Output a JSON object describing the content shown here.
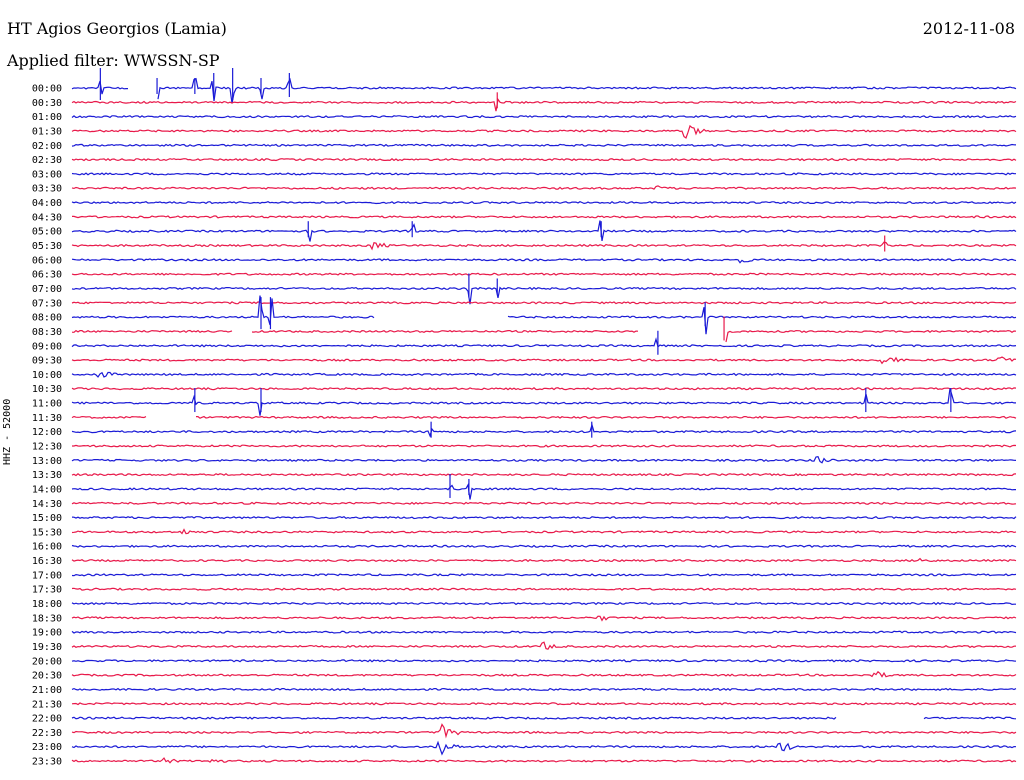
{
  "header": {
    "station": "HT Agios Georgios (Lamia)",
    "date": "2012-11-08",
    "filter": "Applied filter: WWSSN-SP",
    "channel": "HHZ - 52000"
  },
  "colors": {
    "blue": "#1a1ad6",
    "red": "#e8194a"
  },
  "chart_data": {
    "type": "line",
    "title": "HT Agios Georgios (Lamia)",
    "ylabel": "HHZ - 52000",
    "grid": false,
    "trace_colors": [
      "#1a1ad6",
      "#e8194a"
    ],
    "tick_labels": [
      "00:00",
      "00:30",
      "01:00",
      "01:30",
      "02:00",
      "02:30",
      "03:00",
      "03:30",
      "04:00",
      "04:30",
      "05:00",
      "05:30",
      "06:00",
      "06:30",
      "07:00",
      "07:30",
      "08:00",
      "08:30",
      "09:00",
      "09:30",
      "10:00",
      "10:30",
      "11:00",
      "11:30",
      "12:00",
      "12:30",
      "13:00",
      "13:30",
      "14:00",
      "14:30",
      "15:00",
      "15:30",
      "16:00",
      "16:30",
      "17:00",
      "17:30",
      "18:00",
      "18:30",
      "19:00",
      "19:30",
      "20:00",
      "20:30",
      "21:00",
      "21:30",
      "22:00",
      "22:30",
      "23:00",
      "23:30"
    ],
    "events": [
      {
        "row": 0,
        "t": 0.03,
        "amp": 4,
        "kind": "spike"
      },
      {
        "row": 0,
        "t": 0.09,
        "amp": 2,
        "kind": "spike"
      },
      {
        "row": 0,
        "t": 0.13,
        "amp": 2,
        "kind": "spike"
      },
      {
        "row": 0,
        "t": 0.15,
        "amp": 3,
        "kind": "spike"
      },
      {
        "row": 0,
        "t": 0.17,
        "amp": 4,
        "kind": "spike"
      },
      {
        "row": 0,
        "t": 0.2,
        "amp": 2,
        "kind": "spike"
      },
      {
        "row": 0,
        "t": 0.23,
        "amp": 3,
        "kind": "spike"
      },
      {
        "row": 1,
        "t": 0.45,
        "amp": 2,
        "kind": "spike"
      },
      {
        "row": 3,
        "t": 0.65,
        "amp": 2.5,
        "kind": "burst"
      },
      {
        "row": 7,
        "t": 0.62,
        "amp": 1,
        "kind": "burst"
      },
      {
        "row": 10,
        "t": 0.25,
        "amp": 2,
        "kind": "spike"
      },
      {
        "row": 10,
        "t": 0.36,
        "amp": 2,
        "kind": "spike"
      },
      {
        "row": 10,
        "t": 0.56,
        "amp": 2,
        "kind": "spike"
      },
      {
        "row": 11,
        "t": 0.32,
        "amp": 1.5,
        "kind": "burst"
      },
      {
        "row": 11,
        "t": 0.86,
        "amp": 2,
        "kind": "spike"
      },
      {
        "row": 12,
        "t": 0.71,
        "amp": 1,
        "kind": "burst"
      },
      {
        "row": 14,
        "t": 0.42,
        "amp": 3,
        "kind": "spike"
      },
      {
        "row": 14,
        "t": 0.45,
        "amp": 2,
        "kind": "spike"
      },
      {
        "row": 16,
        "t": 0.2,
        "amp": 4,
        "kind": "spike"
      },
      {
        "row": 16,
        "t": 0.21,
        "amp": 4,
        "kind": "spike"
      },
      {
        "row": 16,
        "t": 0.67,
        "amp": 3,
        "kind": "spike"
      },
      {
        "row": 17,
        "t": 0.69,
        "amp": 3,
        "kind": "spike"
      },
      {
        "row": 18,
        "t": 0.62,
        "amp": 3,
        "kind": "spike"
      },
      {
        "row": 19,
        "t": 0.86,
        "amp": 2,
        "kind": "burst"
      },
      {
        "row": 19,
        "t": 0.98,
        "amp": 1.5,
        "kind": "burst"
      },
      {
        "row": 20,
        "t": 0.03,
        "amp": 1.5,
        "kind": "burst"
      },
      {
        "row": 22,
        "t": 0.13,
        "amp": 3,
        "kind": "spike"
      },
      {
        "row": 22,
        "t": 0.2,
        "amp": 3,
        "kind": "spike"
      },
      {
        "row": 22,
        "t": 0.84,
        "amp": 3,
        "kind": "spike"
      },
      {
        "row": 22,
        "t": 0.93,
        "amp": 3,
        "kind": "spike"
      },
      {
        "row": 24,
        "t": 0.38,
        "amp": 2,
        "kind": "spike"
      },
      {
        "row": 24,
        "t": 0.55,
        "amp": 2,
        "kind": "spike"
      },
      {
        "row": 26,
        "t": 0.79,
        "amp": 1.5,
        "kind": "burst"
      },
      {
        "row": 28,
        "t": 0.4,
        "amp": 3,
        "kind": "spike"
      },
      {
        "row": 28,
        "t": 0.42,
        "amp": 2,
        "kind": "spike"
      },
      {
        "row": 31,
        "t": 0.12,
        "amp": 1,
        "kind": "burst"
      },
      {
        "row": 33,
        "t": 0.9,
        "amp": 1,
        "kind": "burst"
      },
      {
        "row": 37,
        "t": 0.56,
        "amp": 1,
        "kind": "burst"
      },
      {
        "row": 39,
        "t": 0.5,
        "amp": 1.5,
        "kind": "burst"
      },
      {
        "row": 41,
        "t": 0.85,
        "amp": 1.5,
        "kind": "burst"
      },
      {
        "row": 45,
        "t": 0.39,
        "amp": 3,
        "kind": "burst"
      },
      {
        "row": 46,
        "t": 0.39,
        "amp": 3,
        "kind": "burst"
      },
      {
        "row": 46,
        "t": 0.75,
        "amp": 2,
        "kind": "burst"
      },
      {
        "row": 47,
        "t": 0.1,
        "amp": 1,
        "kind": "burst"
      },
      {
        "row": 47,
        "t": 0.15,
        "amp": 1,
        "kind": "burst"
      }
    ],
    "gaps": [
      {
        "row": 0,
        "t0": 0.06,
        "t1": 0.09
      },
      {
        "row": 16,
        "t0": 0.32,
        "t1": 0.46
      },
      {
        "row": 17,
        "t0": 0.17,
        "t1": 0.19
      },
      {
        "row": 17,
        "t0": 0.6,
        "t1": 0.69
      },
      {
        "row": 23,
        "t0": 0.08,
        "t1": 0.13
      },
      {
        "row": 44,
        "t0": 0.81,
        "t1": 0.9
      }
    ]
  }
}
